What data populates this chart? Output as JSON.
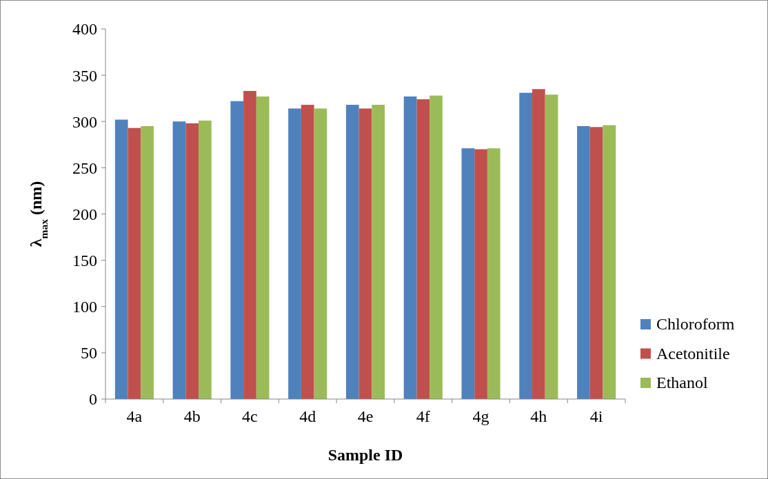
{
  "chart_data": {
    "type": "bar",
    "xlabel": "Sample ID",
    "ylabel": "λ$_{max}$ (nm)",
    "categories": [
      "4a",
      "4b",
      "4c",
      "4d",
      "4e",
      "4f",
      "4g",
      "4h",
      "4i"
    ],
    "series": [
      {
        "name": "Chloroform",
        "color": "#4f81bd",
        "values": [
          302,
          300,
          322,
          314,
          318,
          327,
          271,
          331,
          295
        ]
      },
      {
        "name": "Acetonitile",
        "color": "#c0504d",
        "values": [
          293,
          298,
          333,
          318,
          314,
          324,
          270,
          335,
          294
        ]
      },
      {
        "name": "Ethanol",
        "color": "#9bbb59",
        "values": [
          295,
          301,
          327,
          314,
          318,
          328,
          271,
          329,
          296
        ]
      }
    ],
    "ylim": [
      0,
      400
    ],
    "yticks": [
      0,
      50,
      100,
      150,
      200,
      250,
      300,
      350,
      400
    ],
    "grid": false,
    "legend": "right"
  }
}
